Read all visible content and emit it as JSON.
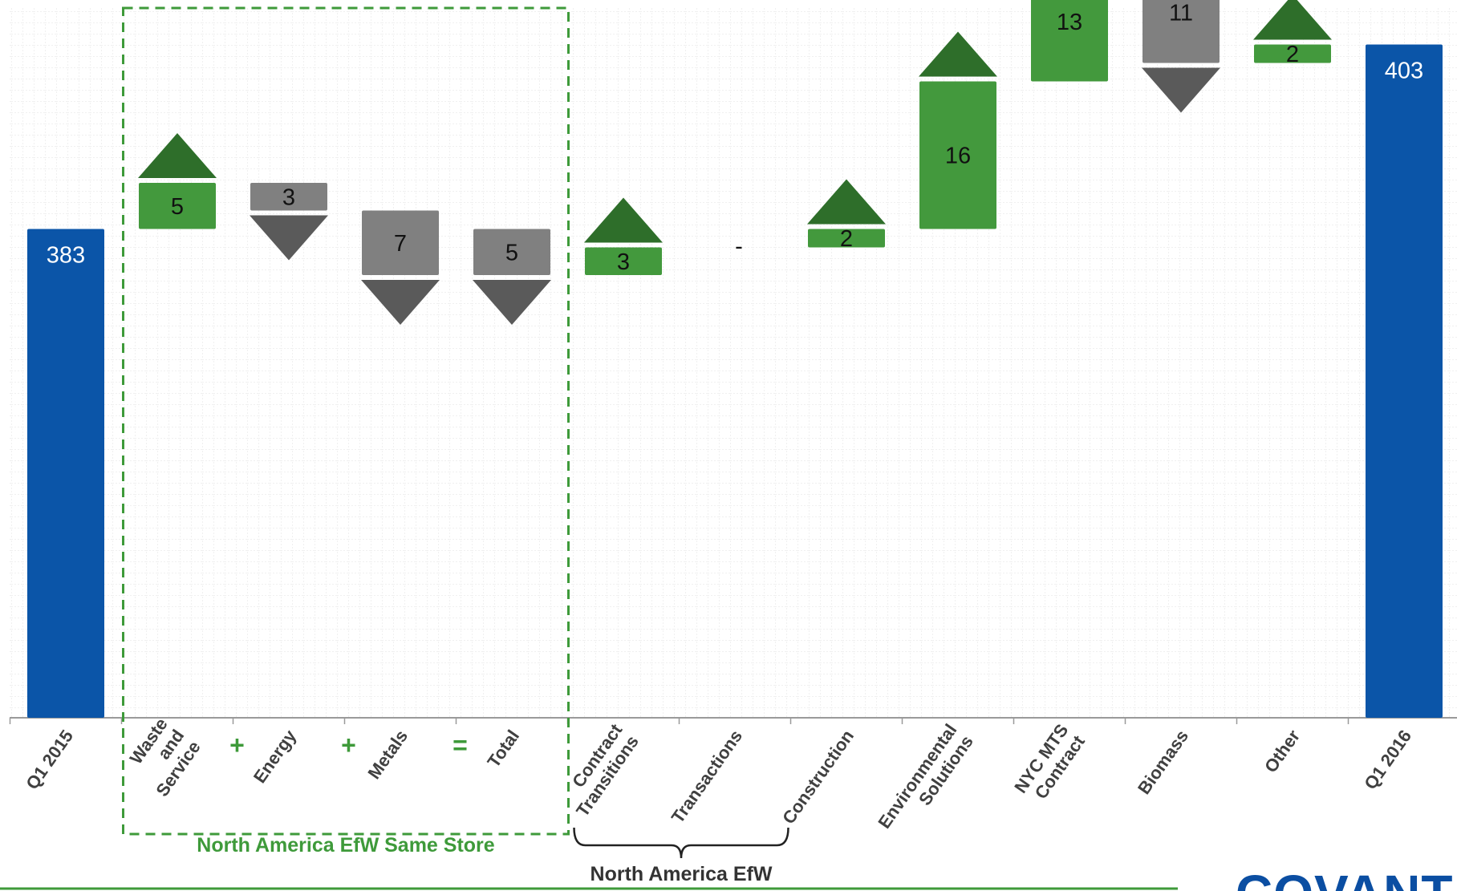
{
  "chart_data": {
    "type": "waterfall",
    "ylim": [
      330,
      420
    ],
    "categories": [
      {
        "label": "Q1 2015",
        "kind": "total",
        "value": 383,
        "display": "383"
      },
      {
        "label": "Waste\nand\nService",
        "kind": "increase",
        "value": 5,
        "display": "5",
        "group": "same_store"
      },
      {
        "label": "Energy",
        "kind": "decrease",
        "value": 3,
        "display": "3",
        "group": "same_store"
      },
      {
        "label": "Metals",
        "kind": "decrease",
        "value": 7,
        "display": "7",
        "group": "same_store"
      },
      {
        "label": "Total",
        "kind": "decrease",
        "value": 5,
        "display": "5",
        "group": "same_store"
      },
      {
        "label": "Contract\nTransitions",
        "kind": "increase",
        "value": 3,
        "display": "3"
      },
      {
        "label": "Transactions",
        "kind": "none",
        "value": 0,
        "display": "-"
      },
      {
        "label": "Construction",
        "kind": "increase",
        "value": 2,
        "display": "2"
      },
      {
        "label": "Environmental\nSolutions",
        "kind": "increase",
        "value": 16,
        "display": "16"
      },
      {
        "label": "NYC MTS\nContract",
        "kind": "increase",
        "value": 13,
        "display": "13"
      },
      {
        "label": "Biomass",
        "kind": "decrease",
        "value": 11,
        "display": "11"
      },
      {
        "label": "Other",
        "kind": "increase",
        "value": 2,
        "display": "2"
      },
      {
        "label": "Q1 2016",
        "kind": "total",
        "value": 403,
        "display": "403"
      }
    ],
    "operators": [
      "+",
      "+",
      "="
    ],
    "group_labels": {
      "same_store": "North America EfW Same Store",
      "efw": "North America EfW"
    },
    "colors": {
      "total": "#0b55a8",
      "increase": "#43993d",
      "increase_arrow": "#2e6e2a",
      "decrease": "#808080",
      "decrease_arrow": "#5a5a5a",
      "dashed_box": "#3e9a3a",
      "footer_line": "#3e9a3a"
    },
    "grid": true
  },
  "logo": {
    "text": "COVANTA"
  }
}
